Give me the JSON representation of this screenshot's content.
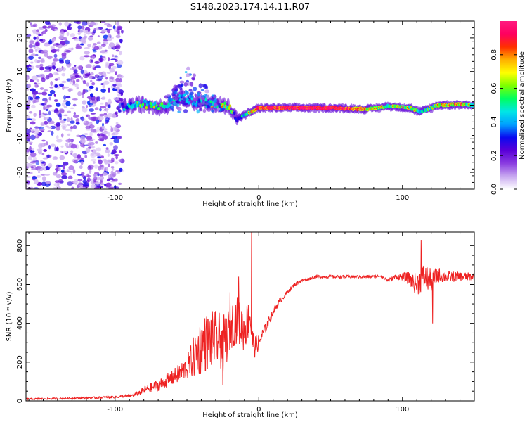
{
  "figure": {
    "title": "S148.2023.174.14.11.R07"
  },
  "chart_data": [
    {
      "type": "heatmap",
      "name": "spectrogram",
      "xlabel": "Height of straight line (km)",
      "ylabel": "Frequency (Hz)",
      "xlim": [
        -162,
        150
      ],
      "ylim": [
        -25,
        25
      ],
      "xticks": [
        -100,
        0,
        100
      ],
      "xtick_labels": [
        "-100",
        "0",
        "100"
      ],
      "yticks": [
        -20,
        -10,
        0,
        10,
        20
      ],
      "ytick_labels": [
        "-20",
        "-10",
        "0",
        "10",
        "20"
      ],
      "colorbar": {
        "label": "Normalized spectral amplitude",
        "range": [
          0,
          1
        ],
        "ticks": [
          0.0,
          0.2,
          0.4,
          0.6,
          0.8
        ],
        "tick_labels": [
          "0.0",
          "0.2",
          "0.4",
          "0.6",
          "0.8"
        ],
        "colormap": [
          "#ffffff",
          "#c8a8f0",
          "#8a3ce0",
          "#5a00d8",
          "#0a0af0",
          "#00a0ff",
          "#00e6e6",
          "#00ff60",
          "#7cff00",
          "#ffff00",
          "#ffb000",
          "#ff3000",
          "#ff0060",
          "#ff1a80"
        ]
      },
      "noise_region_x": [
        -162,
        -95
      ],
      "ridge": [
        {
          "x": -95,
          "f": -0.5,
          "amp": 0.35
        },
        {
          "x": -80,
          "f": 0.3,
          "amp": 0.5
        },
        {
          "x": -65,
          "f": -0.5,
          "amp": 0.45
        },
        {
          "x": -55,
          "f": 2.5,
          "amp": 0.35
        },
        {
          "x": -45,
          "f": 1.0,
          "amp": 0.4
        },
        {
          "x": -35,
          "f": 0.5,
          "amp": 0.45
        },
        {
          "x": -20,
          "f": -0.5,
          "amp": 0.6
        },
        {
          "x": -15,
          "f": -4,
          "amp": 0.3
        },
        {
          "x": 0,
          "f": -0.8,
          "amp": 0.85
        },
        {
          "x": 25,
          "f": -0.8,
          "amp": 0.9
        },
        {
          "x": 50,
          "f": -0.8,
          "amp": 0.95
        },
        {
          "x": 75,
          "f": -1.2,
          "amp": 0.7
        },
        {
          "x": 90,
          "f": -0.3,
          "amp": 0.55
        },
        {
          "x": 105,
          "f": -0.8,
          "amp": 0.6
        },
        {
          "x": 112,
          "f": -2.0,
          "amp": 0.45
        },
        {
          "x": 125,
          "f": 0.0,
          "amp": 0.6
        },
        {
          "x": 140,
          "f": 0.2,
          "amp": 0.7
        },
        {
          "x": 150,
          "f": 0.0,
          "amp": 0.5
        }
      ]
    },
    {
      "type": "line",
      "name": "snr",
      "xlabel": "Height of straight line (km)",
      "ylabel": "SNR (10 * v/v)",
      "xlim": [
        -162,
        150
      ],
      "ylim": [
        0,
        870
      ],
      "xticks": [
        -100,
        0,
        100
      ],
      "xtick_labels": [
        "-100",
        "0",
        "100"
      ],
      "yticks": [
        0,
        200,
        400,
        600,
        800
      ],
      "ytick_labels": [
        "0",
        "200",
        "400",
        "600",
        "800"
      ],
      "line_color": "#ee2222",
      "series": [
        {
          "name": "SNR",
          "x": [
            -162,
            -140,
            -120,
            -100,
            -90,
            -85,
            -80,
            -70,
            -60,
            -50,
            -45,
            -40,
            -35,
            -30,
            -25,
            -22,
            -20,
            -15,
            -10,
            -6,
            -5,
            -3,
            0,
            5,
            10,
            15,
            20,
            25,
            30,
            40,
            50,
            60,
            70,
            80,
            85,
            90,
            95,
            100,
            105,
            110,
            115,
            120,
            125,
            130,
            140,
            150
          ],
          "y": [
            10,
            12,
            15,
            20,
            25,
            35,
            55,
            80,
            120,
            170,
            230,
            280,
            310,
            320,
            300,
            330,
            380,
            420,
            360,
            450,
            330,
            280,
            300,
            380,
            460,
            520,
            560,
            600,
            620,
            640,
            640,
            640,
            640,
            640,
            645,
            620,
            640,
            640,
            630,
            600,
            640,
            620,
            650,
            640,
            640,
            640
          ],
          "jitter": [
            4,
            4,
            5,
            6,
            8,
            12,
            20,
            30,
            40,
            60,
            110,
            150,
            150,
            150,
            140,
            130,
            120,
            120,
            110,
            100,
            80,
            60,
            40,
            25,
            20,
            15,
            12,
            10,
            8,
            8,
            8,
            8,
            8,
            8,
            8,
            10,
            12,
            20,
            35,
            60,
            70,
            60,
            40,
            30,
            25,
            20
          ]
        }
      ],
      "spikes": [
        {
          "x": -5,
          "y": 870
        },
        {
          "x": -14,
          "y": 640
        },
        {
          "x": -20,
          "y": 560
        },
        {
          "x": 113,
          "y": 830
        },
        {
          "x": 121,
          "y": 400
        },
        {
          "x": -25,
          "y": 80
        }
      ]
    }
  ]
}
